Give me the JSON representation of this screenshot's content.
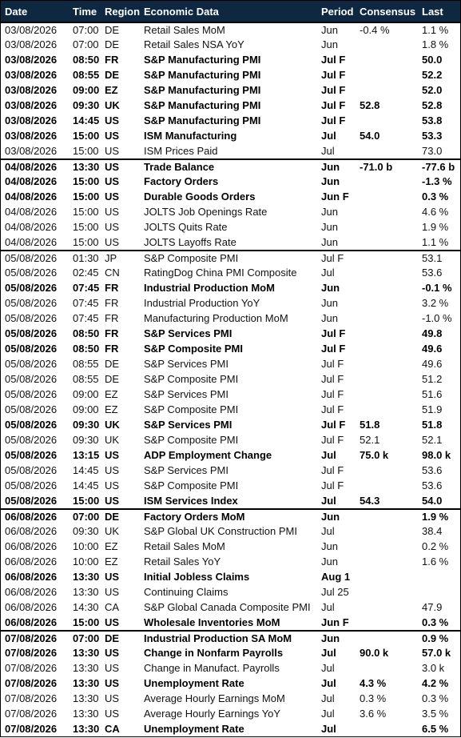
{
  "header": [
    "Date",
    "Time",
    "Region",
    "Economic Data",
    "Period",
    "Consensus",
    "Last"
  ],
  "groups": [
    [
      {
        "cells": [
          "03/08/2026",
          "07:00",
          "DE",
          "Retail Sales MoM",
          "Jun",
          "-0.4 %",
          "1.1 %"
        ],
        "bold": false
      },
      {
        "cells": [
          "03/08/2026",
          "07:00",
          "DE",
          "Retail Sales NSA YoY",
          "Jun",
          null,
          "1.8 %"
        ],
        "bold": false
      },
      {
        "cells": [
          "03/08/2026",
          "08:50",
          "FR",
          "S&P Manufacturing PMI",
          "Jul F",
          null,
          "50.0"
        ],
        "bold": true
      },
      {
        "cells": [
          "03/08/2026",
          "08:55",
          "DE",
          "S&P Manufacturing PMI",
          "Jul F",
          null,
          "52.2"
        ],
        "bold": true
      },
      {
        "cells": [
          "03/08/2026",
          "09:00",
          "EZ",
          "S&P Manufacturing PMI",
          "Jul F",
          null,
          "52.0"
        ],
        "bold": true
      },
      {
        "cells": [
          "03/08/2026",
          "09:30",
          "UK",
          "S&P Manufacturing PMI",
          "Jul F",
          "52.8",
          "52.8"
        ],
        "bold": true
      },
      {
        "cells": [
          "03/08/2026",
          "14:45",
          "US",
          "S&P Manufacturing PMI",
          "Jul F",
          null,
          "53.8"
        ],
        "bold": true
      },
      {
        "cells": [
          "03/08/2026",
          "15:00",
          "US",
          "ISM Manufacturing",
          "Jul",
          "54.0",
          "53.3"
        ],
        "bold": true
      },
      {
        "cells": [
          "03/08/2026",
          "15:00",
          "US",
          "ISM Prices Paid",
          "Jul",
          null,
          "73.0"
        ],
        "bold": false
      }
    ],
    [
      {
        "cells": [
          "04/08/2026",
          "13:30",
          "US",
          "Trade Balance",
          "Jun",
          "-71.0 b",
          "-77.6 b"
        ],
        "bold": true
      },
      {
        "cells": [
          "04/08/2026",
          "15:00",
          "US",
          "Factory Orders",
          "Jun",
          null,
          "-1.3 %"
        ],
        "bold": true
      },
      {
        "cells": [
          "04/08/2026",
          "15:00",
          "US",
          "Durable Goods Orders",
          "Jun F",
          null,
          "0.3 %"
        ],
        "bold": true
      },
      {
        "cells": [
          "04/08/2026",
          "15:00",
          "US",
          "JOLTS Job Openings Rate",
          "Jun",
          null,
          "4.6 %"
        ],
        "bold": false
      },
      {
        "cells": [
          "04/08/2026",
          "15:00",
          "US",
          "JOLTS Quits Rate",
          "Jun",
          null,
          "1.9 %"
        ],
        "bold": false
      },
      {
        "cells": [
          "04/08/2026",
          "15:00",
          "US",
          "JOLTS Layoffs Rate",
          "Jun",
          null,
          "1.1 %"
        ],
        "bold": false
      }
    ],
    [
      {
        "cells": [
          "05/08/2026",
          "01:30",
          "JP",
          "S&P Composite PMI",
          "Jul F",
          null,
          "53.1"
        ],
        "bold": false
      },
      {
        "cells": [
          "05/08/2026",
          "02:45",
          "CN",
          "RatingDog China PMI Composite",
          "Jul",
          null,
          "53.6"
        ],
        "bold": false
      },
      {
        "cells": [
          "05/08/2026",
          "07:45",
          "FR",
          "Industrial Production MoM",
          "Jun",
          null,
          "-0.1 %"
        ],
        "bold": true
      },
      {
        "cells": [
          "05/08/2026",
          "07:45",
          "FR",
          "Industrial Production YoY",
          "Jun",
          null,
          "3.2 %"
        ],
        "bold": false
      },
      {
        "cells": [
          "05/08/2026",
          "07:45",
          "FR",
          "Manufacturing Production MoM",
          "Jun",
          null,
          "-1.0 %"
        ],
        "bold": false
      },
      {
        "cells": [
          "05/08/2026",
          "08:50",
          "FR",
          "S&P Services PMI",
          "Jul F",
          null,
          "49.8"
        ],
        "bold": true
      },
      {
        "cells": [
          "05/08/2026",
          "08:50",
          "FR",
          "S&P Composite PMI",
          "Jul F",
          null,
          "49.6"
        ],
        "bold": true
      },
      {
        "cells": [
          "05/08/2026",
          "08:55",
          "DE",
          "S&P Services PMI",
          "Jul F",
          null,
          "49.6"
        ],
        "bold": false
      },
      {
        "cells": [
          "05/08/2026",
          "08:55",
          "DE",
          "S&P Composite PMI",
          "Jul F",
          null,
          "51.2"
        ],
        "bold": false
      },
      {
        "cells": [
          "05/08/2026",
          "09:00",
          "EZ",
          "S&P Services PMI",
          "Jul F",
          null,
          "51.6"
        ],
        "bold": false
      },
      {
        "cells": [
          "05/08/2026",
          "09:00",
          "EZ",
          "S&P Composite PMI",
          "Jul F",
          null,
          "51.9"
        ],
        "bold": false
      },
      {
        "cells": [
          "05/08/2026",
          "09:30",
          "UK",
          "S&P Services PMI",
          "Jul F",
          "51.8",
          "51.8"
        ],
        "bold": true
      },
      {
        "cells": [
          "05/08/2026",
          "09:30",
          "UK",
          "S&P Composite PMI",
          "Jul F",
          "52.1",
          "52.1"
        ],
        "bold": false
      },
      {
        "cells": [
          "05/08/2026",
          "13:15",
          "US",
          "ADP Employment Change",
          "Jul",
          "75.0 k",
          "98.0 k"
        ],
        "bold": true
      },
      {
        "cells": [
          "05/08/2026",
          "14:45",
          "US",
          "S&P Services PMI",
          "Jul F",
          null,
          "53.6"
        ],
        "bold": false
      },
      {
        "cells": [
          "05/08/2026",
          "14:45",
          "US",
          "S&P Composite PMI",
          "Jul F",
          null,
          "53.6"
        ],
        "bold": false
      },
      {
        "cells": [
          "05/08/2026",
          "15:00",
          "US",
          "ISM Services Index",
          "Jul",
          "54.3",
          "54.0"
        ],
        "bold": true
      }
    ],
    [
      {
        "cells": [
          "06/08/2026",
          "07:00",
          "DE",
          "Factory Orders MoM",
          "Jun",
          null,
          "1.9 %"
        ],
        "bold": true
      },
      {
        "cells": [
          "06/08/2026",
          "09:30",
          "UK",
          "S&P Global UK Construction PMI",
          "Jul",
          null,
          "38.4"
        ],
        "bold": false
      },
      {
        "cells": [
          "06/08/2026",
          "10:00",
          "EZ",
          "Retail Sales MoM",
          "Jun",
          null,
          "0.2 %"
        ],
        "bold": false
      },
      {
        "cells": [
          "06/08/2026",
          "10:00",
          "EZ",
          "Retail Sales YoY",
          "Jun",
          null,
          "1.6 %"
        ],
        "bold": false
      },
      {
        "cells": [
          "06/08/2026",
          "13:30",
          "US",
          "Initial Jobless Claims",
          "Aug 1",
          null,
          null
        ],
        "bold": true
      },
      {
        "cells": [
          "06/08/2026",
          "13:30",
          "US",
          "Continuing Claims",
          "Jul 25",
          null,
          null
        ],
        "bold": false
      },
      {
        "cells": [
          "06/08/2026",
          "14:30",
          "CA",
          "S&P Global Canada Composite PMI",
          "Jul",
          null,
          "47.9"
        ],
        "bold": false
      },
      {
        "cells": [
          "06/08/2026",
          "15:00",
          "US",
          "Wholesale Inventories MoM",
          "Jun F",
          null,
          "0.3 %"
        ],
        "bold": true
      }
    ],
    [
      {
        "cells": [
          "07/08/2026",
          "07:00",
          "DE",
          "Industrial Production SA MoM",
          "Jun",
          null,
          "0.9 %"
        ],
        "bold": true
      },
      {
        "cells": [
          "07/08/2026",
          "13:30",
          "US",
          "Change in Nonfarm Payrolls",
          "Jul",
          "90.0 k",
          "57.0 k"
        ],
        "bold": true
      },
      {
        "cells": [
          "07/08/2026",
          "13:30",
          "US",
          "Change in Manufact. Payrolls",
          "Jul",
          null,
          "3.0 k"
        ],
        "bold": false
      },
      {
        "cells": [
          "07/08/2026",
          "13:30",
          "US",
          "Unemployment Rate",
          "Jul",
          "4.3 %",
          "4.2 %"
        ],
        "bold": true
      },
      {
        "cells": [
          "07/08/2026",
          "13:30",
          "US",
          "Average Hourly Earnings MoM",
          "Jul",
          "0.3 %",
          "0.3 %"
        ],
        "bold": false
      },
      {
        "cells": [
          "07/08/2026",
          "13:30",
          "US",
          "Average Hourly Earnings YoY",
          "Jul",
          "3.6 %",
          "3.5 %"
        ],
        "bold": false
      },
      {
        "cells": [
          "07/08/2026",
          "13:30",
          "CA",
          "Unemployment Rate",
          "Jul",
          null,
          "6.5 %"
        ],
        "bold": true
      }
    ]
  ]
}
